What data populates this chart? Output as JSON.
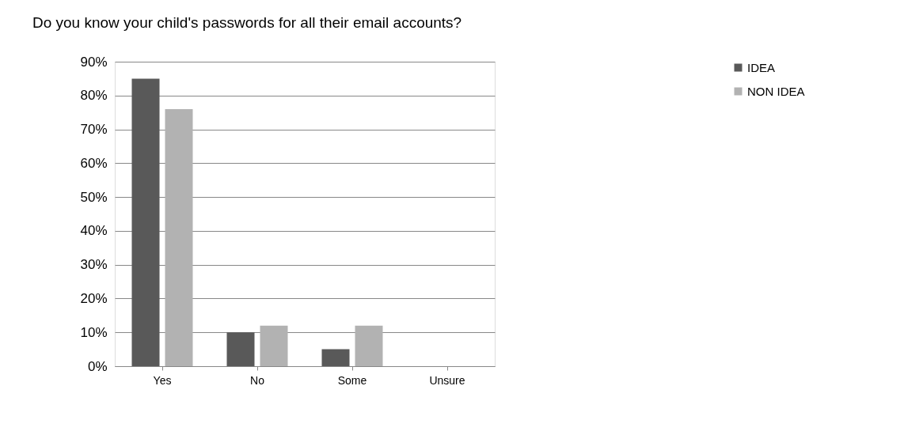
{
  "chart_data": {
    "type": "bar",
    "title": "Do you know your child's passwords for all their email accounts?",
    "categories": [
      "Yes",
      "No",
      "Some",
      "Unsure"
    ],
    "series": [
      {
        "name": "IDEA",
        "color": "#595959",
        "values": [
          85,
          10,
          5,
          0
        ]
      },
      {
        "name": "NON IDEA",
        "color": "#b2b2b2",
        "values": [
          76,
          12,
          12,
          0
        ]
      }
    ],
    "ylim": [
      0,
      90
    ],
    "yticks": [
      {
        "value": 0,
        "label": "0%"
      },
      {
        "value": 10,
        "label": "10%"
      },
      {
        "value": 20,
        "label": "20%"
      },
      {
        "value": 30,
        "label": "30%"
      },
      {
        "value": 40,
        "label": "40%"
      },
      {
        "value": 50,
        "label": "50%"
      },
      {
        "value": 60,
        "label": "60%"
      },
      {
        "value": 70,
        "label": "70%"
      },
      {
        "value": 80,
        "label": "80%"
      },
      {
        "value": 90,
        "label": "90%"
      }
    ],
    "grid": "y",
    "legend": "right"
  }
}
